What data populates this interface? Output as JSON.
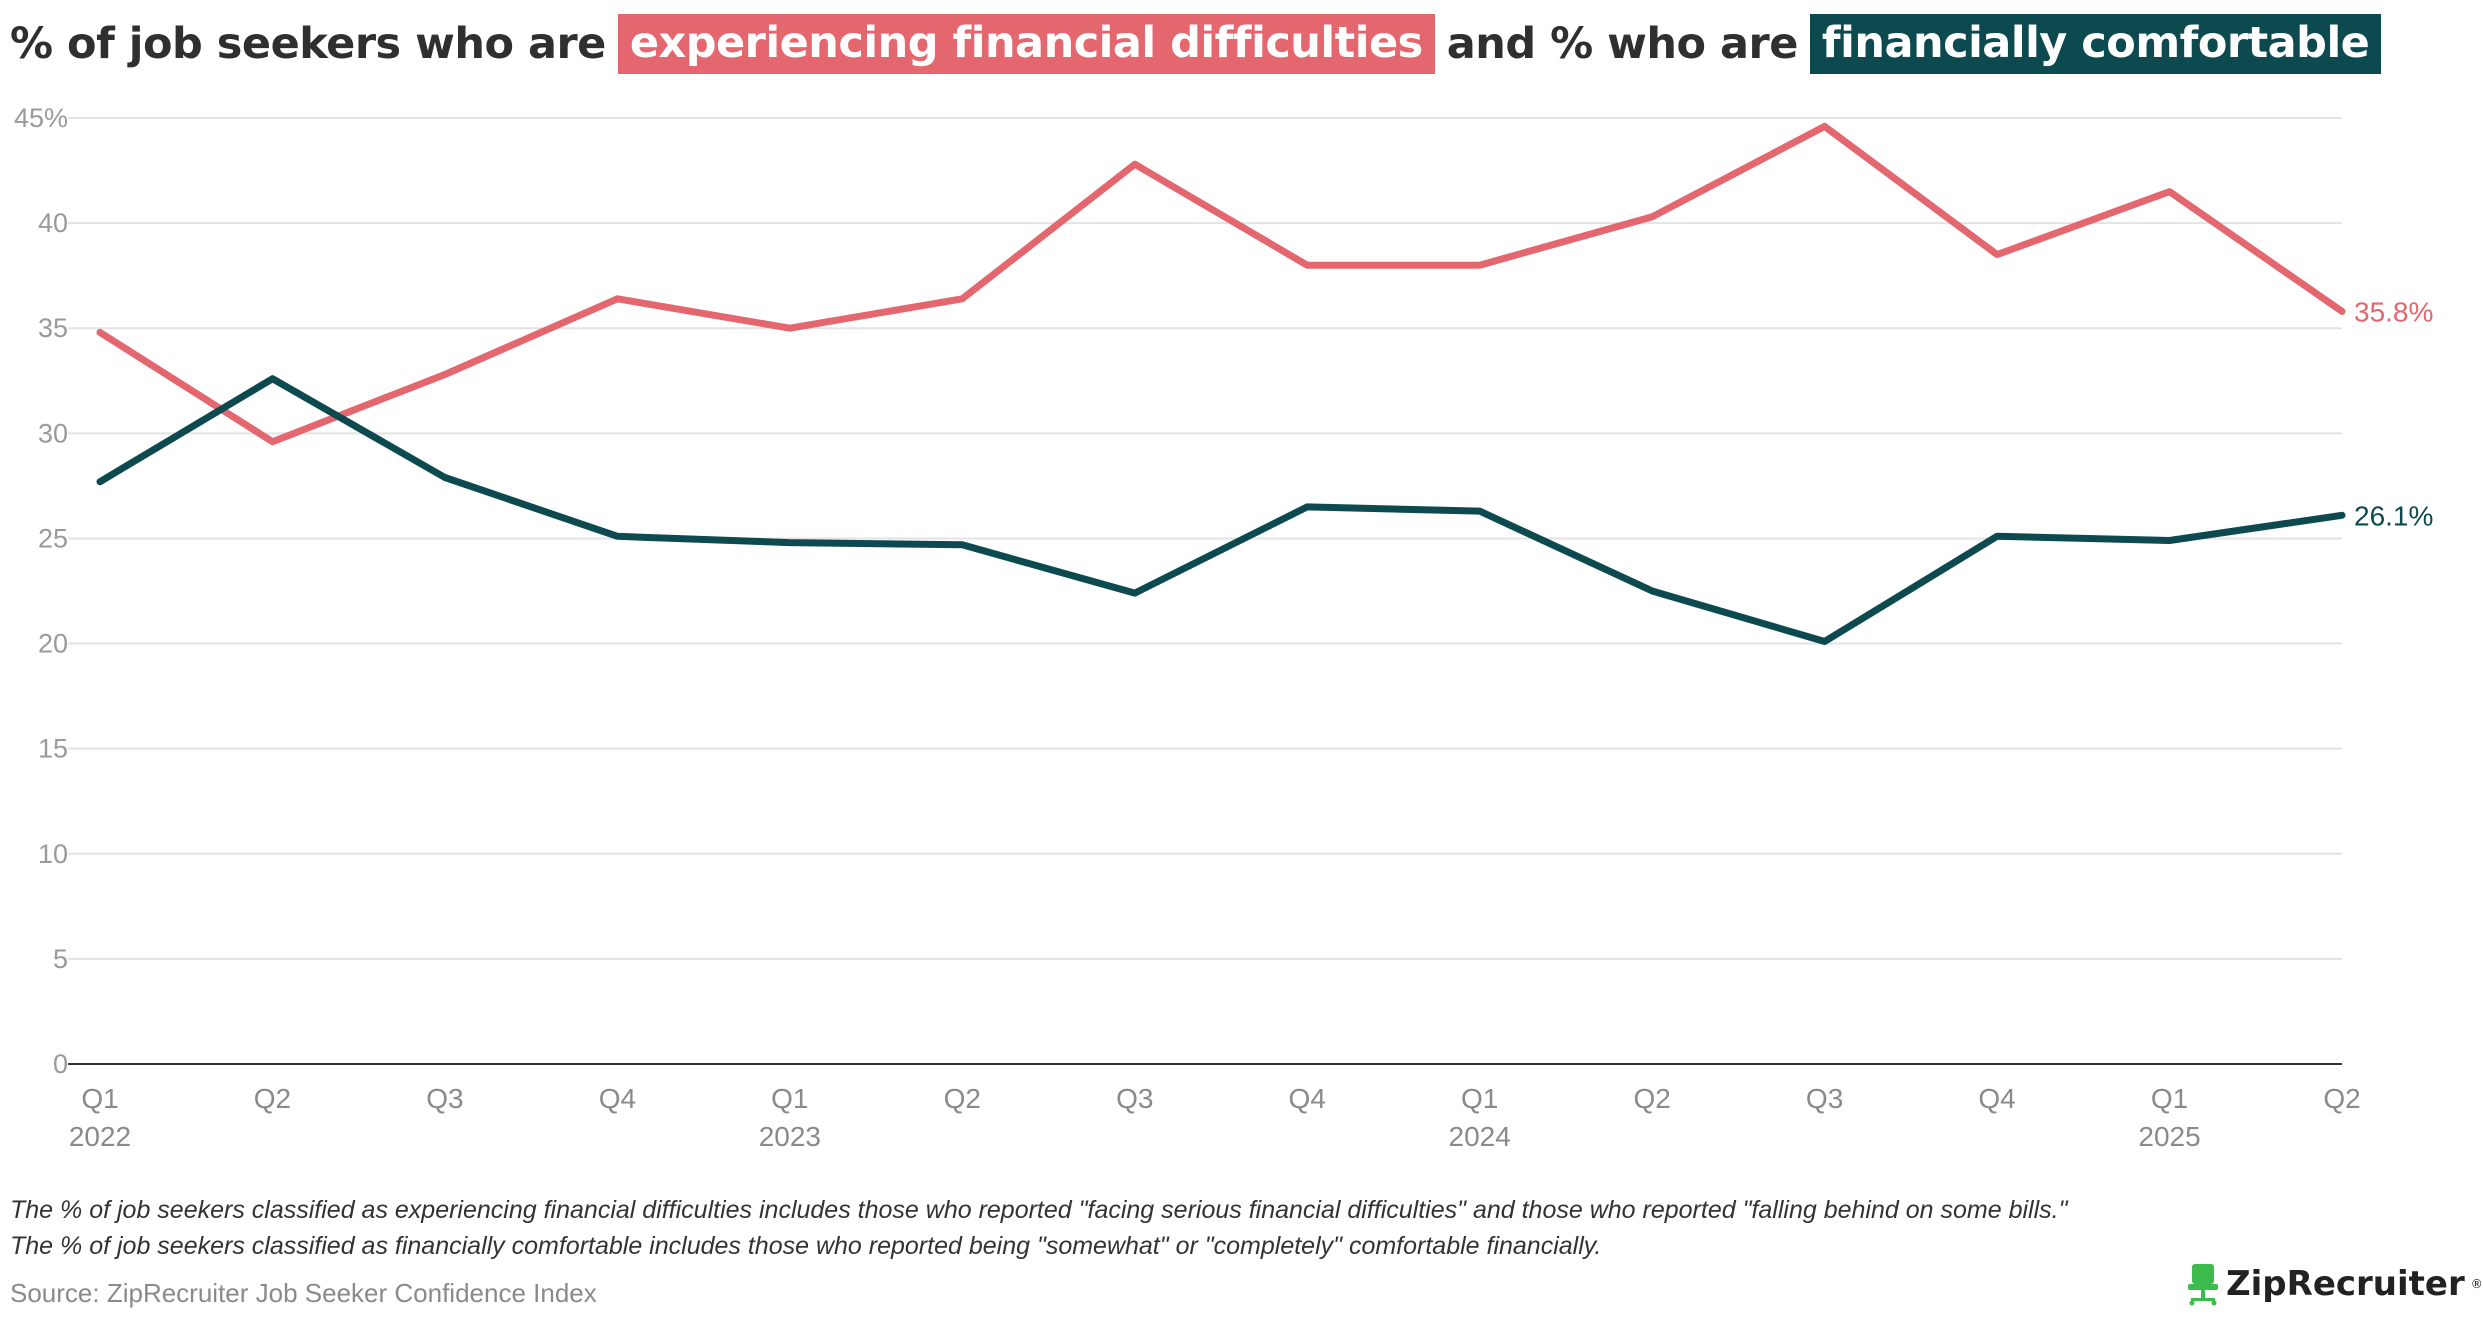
{
  "title": {
    "part1": "% of job seekers who are",
    "highlight1": "experiencing financial difficulties",
    "part2": "and % who are",
    "highlight2": "financially comfortable"
  },
  "notes": [
    "The % of job seekers classified as experiencing financial difficulties includes those who reported \"facing serious financial difficulties\" and those who reported \"falling behind on some bills.\"",
    "The % of job seekers classified as financially comfortable includes those who reported being \"somewhat\" or \"completely\" comfortable financially."
  ],
  "source": "Source: ZipRecruiter Job Seeker Confidence Index",
  "logo": {
    "text": "ZipRecruiter",
    "mark": "®",
    "icon": "chair-icon",
    "color": "#3dbb4d"
  },
  "colors": {
    "difficulties": "#e4666e",
    "comfortable": "#0c4a50"
  },
  "chart_data": {
    "type": "line",
    "title": "% of job seekers who are experiencing financial difficulties and % who are financially comfortable",
    "xlabel": "",
    "ylabel": "",
    "ylim": [
      0,
      45
    ],
    "yticks": [
      0,
      5,
      10,
      15,
      20,
      25,
      30,
      35,
      40,
      45
    ],
    "ytick_labels": [
      "0",
      "5",
      "10",
      "15",
      "20",
      "25",
      "30",
      "35",
      "40",
      "45%"
    ],
    "x": [
      "Q1 2022",
      "Q2 2022",
      "Q3 2022",
      "Q4 2022",
      "Q1 2023",
      "Q2 2023",
      "Q3 2023",
      "Q4 2023",
      "Q1 2024",
      "Q2 2024",
      "Q3 2024",
      "Q4 2024",
      "Q1 2025",
      "Q2 2025"
    ],
    "quarter_labels": [
      "Q1",
      "Q2",
      "Q3",
      "Q4",
      "Q1",
      "Q2",
      "Q3",
      "Q4",
      "Q1",
      "Q2",
      "Q3",
      "Q4",
      "Q1",
      "Q2"
    ],
    "year_labels": [
      {
        "index": 0,
        "label": "2022"
      },
      {
        "index": 4,
        "label": "2023"
      },
      {
        "index": 8,
        "label": "2024"
      },
      {
        "index": 12,
        "label": "2025"
      }
    ],
    "grid": true,
    "legend": "none",
    "series": [
      {
        "name": "experiencing financial difficulties",
        "color": "#e4666e",
        "values": [
          34.8,
          29.6,
          32.8,
          36.4,
          35.0,
          36.4,
          42.8,
          38.0,
          38.0,
          40.3,
          44.6,
          38.5,
          41.5,
          35.8
        ],
        "end_label": "35.8%"
      },
      {
        "name": "financially comfortable",
        "color": "#0c4a50",
        "values": [
          27.7,
          32.6,
          27.9,
          25.1,
          24.8,
          24.7,
          22.4,
          26.5,
          26.3,
          22.5,
          20.1,
          25.1,
          24.9,
          26.1
        ],
        "end_label": "26.1%"
      }
    ]
  }
}
